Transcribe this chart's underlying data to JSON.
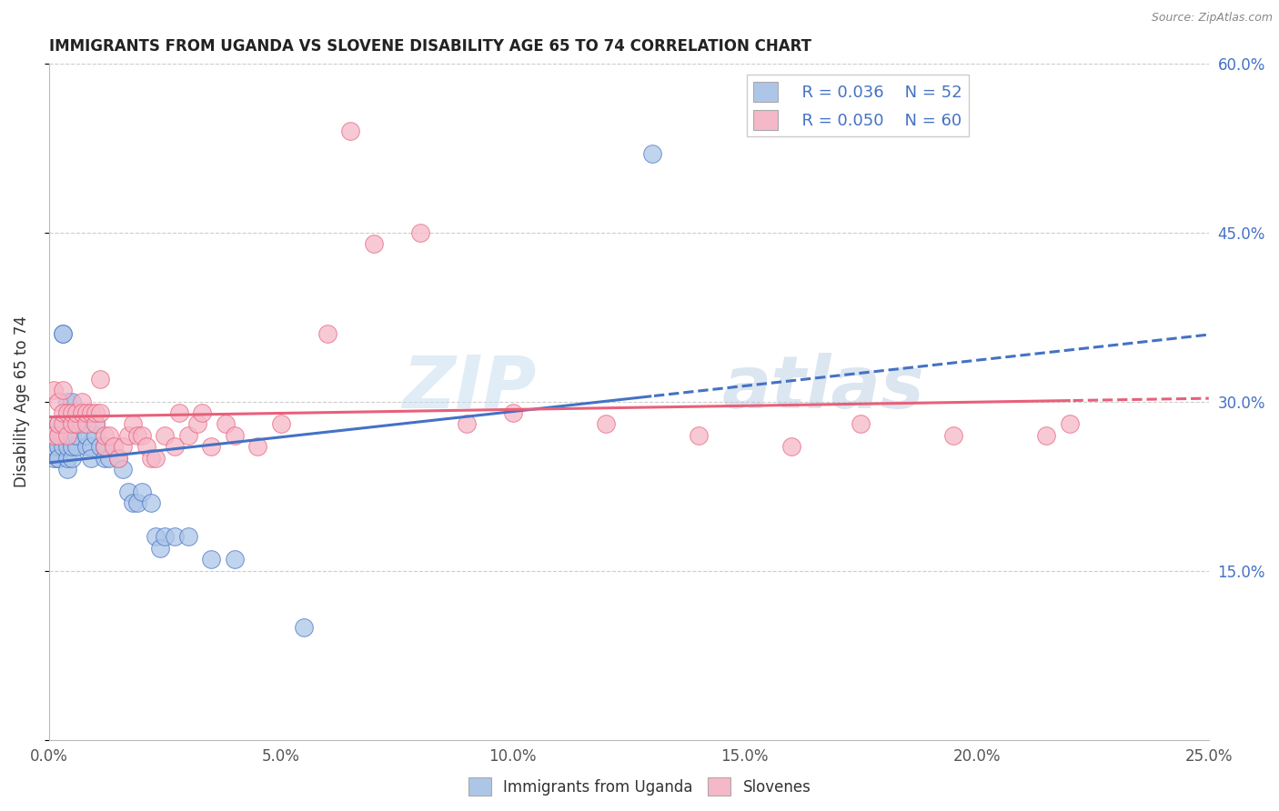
{
  "title": "IMMIGRANTS FROM UGANDA VS SLOVENE DISABILITY AGE 65 TO 74 CORRELATION CHART",
  "source": "Source: ZipAtlas.com",
  "ylabel": "Disability Age 65 to 74",
  "xlim": [
    0.0,
    0.25
  ],
  "ylim": [
    0.0,
    0.6
  ],
  "xlabel_ticks": [
    "0.0%",
    "5.0%",
    "10.0%",
    "15.0%",
    "20.0%",
    "25.0%"
  ],
  "right_yticks": [
    "15.0%",
    "30.0%",
    "45.0%",
    "60.0%"
  ],
  "right_ytick_vals": [
    0.15,
    0.3,
    0.45,
    0.6
  ],
  "legend_r1": "R = 0.036",
  "legend_n1": "N = 52",
  "legend_r2": "R = 0.050",
  "legend_n2": "N = 60",
  "color_blue": "#adc6e8",
  "color_pink": "#f5b8c8",
  "line_blue": "#4472c4",
  "line_pink": "#e8607a",
  "watermark_zip": "ZIP",
  "watermark_atlas": "atlas",
  "uganda_x": [
    0.001,
    0.001,
    0.001,
    0.001,
    0.002,
    0.002,
    0.002,
    0.002,
    0.002,
    0.003,
    0.003,
    0.003,
    0.003,
    0.004,
    0.004,
    0.004,
    0.004,
    0.005,
    0.005,
    0.005,
    0.005,
    0.006,
    0.006,
    0.006,
    0.007,
    0.007,
    0.008,
    0.008,
    0.009,
    0.009,
    0.01,
    0.01,
    0.011,
    0.012,
    0.012,
    0.013,
    0.015,
    0.016,
    0.017,
    0.018,
    0.019,
    0.02,
    0.022,
    0.023,
    0.024,
    0.025,
    0.027,
    0.03,
    0.035,
    0.04,
    0.055,
    0.13
  ],
  "uganda_y": [
    0.25,
    0.26,
    0.27,
    0.26,
    0.25,
    0.27,
    0.26,
    0.28,
    0.25,
    0.36,
    0.36,
    0.26,
    0.27,
    0.24,
    0.25,
    0.26,
    0.3,
    0.25,
    0.26,
    0.27,
    0.3,
    0.26,
    0.28,
    0.27,
    0.28,
    0.28,
    0.26,
    0.27,
    0.26,
    0.25,
    0.27,
    0.28,
    0.26,
    0.25,
    0.26,
    0.25,
    0.25,
    0.24,
    0.22,
    0.21,
    0.21,
    0.22,
    0.21,
    0.18,
    0.17,
    0.18,
    0.18,
    0.18,
    0.16,
    0.16,
    0.1,
    0.52
  ],
  "slovene_x": [
    0.001,
    0.001,
    0.002,
    0.002,
    0.002,
    0.003,
    0.003,
    0.003,
    0.004,
    0.004,
    0.005,
    0.005,
    0.006,
    0.006,
    0.007,
    0.007,
    0.008,
    0.008,
    0.009,
    0.01,
    0.01,
    0.011,
    0.011,
    0.012,
    0.012,
    0.013,
    0.014,
    0.015,
    0.016,
    0.017,
    0.018,
    0.019,
    0.02,
    0.021,
    0.022,
    0.023,
    0.025,
    0.027,
    0.028,
    0.03,
    0.032,
    0.033,
    0.035,
    0.038,
    0.04,
    0.045,
    0.05,
    0.06,
    0.065,
    0.07,
    0.08,
    0.09,
    0.1,
    0.12,
    0.14,
    0.16,
    0.175,
    0.195,
    0.215,
    0.22
  ],
  "slovene_y": [
    0.31,
    0.27,
    0.27,
    0.28,
    0.3,
    0.28,
    0.29,
    0.31,
    0.27,
    0.29,
    0.28,
    0.29,
    0.28,
    0.29,
    0.3,
    0.29,
    0.28,
    0.29,
    0.29,
    0.28,
    0.29,
    0.29,
    0.32,
    0.26,
    0.27,
    0.27,
    0.26,
    0.25,
    0.26,
    0.27,
    0.28,
    0.27,
    0.27,
    0.26,
    0.25,
    0.25,
    0.27,
    0.26,
    0.29,
    0.27,
    0.28,
    0.29,
    0.26,
    0.28,
    0.27,
    0.26,
    0.28,
    0.36,
    0.54,
    0.44,
    0.45,
    0.28,
    0.29,
    0.28,
    0.27,
    0.26,
    0.28,
    0.27,
    0.27,
    0.28
  ]
}
